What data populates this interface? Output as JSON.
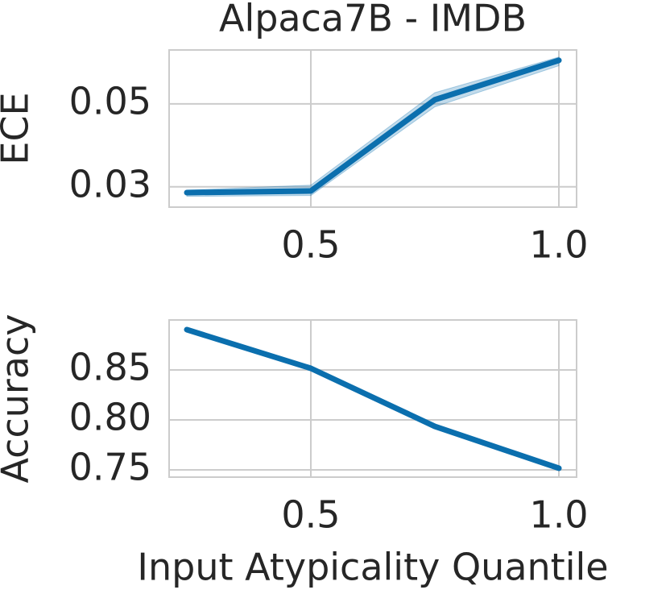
{
  "chart_data": [
    {
      "type": "line",
      "title": "Alpaca7B - IMDB",
      "y_label": "ECE",
      "x": [
        0.25,
        0.5,
        0.75,
        1.0
      ],
      "series": [
        {
          "color": "#0b6fae",
          "values": [
            0.0286,
            0.029,
            0.051,
            0.0605
          ]
        }
      ],
      "band_lower": [
        0.0277,
        0.0279,
        0.0493,
        0.0592
      ],
      "band_upper": [
        0.0292,
        0.0304,
        0.0527,
        0.0613
      ],
      "xlim": [
        0.2143,
        1.0357
      ],
      "ylim": [
        0.0251,
        0.063
      ],
      "xticks": [
        0.5,
        {
          "value": 1,
          "label": "1.0"
        }
      ],
      "yticks": [
        0.03,
        0.05
      ],
      "grid": true
    },
    {
      "type": "line",
      "y_label": "Accuracy",
      "x_label": "Input Atypicality Quantile",
      "x": [
        0.25,
        0.5,
        0.75,
        1.0
      ],
      "series": [
        {
          "color": "#0b6fae",
          "values": [
            0.8903,
            0.8516,
            0.7935,
            0.7516
          ]
        }
      ],
      "xlim": [
        0.2143,
        1.0357
      ],
      "ylim": [
        0.7427,
        0.9
      ],
      "xticks": [
        0.5,
        {
          "value": 1,
          "label": "1.0"
        }
      ],
      "yticks": [
        0.75,
        {
          "value": 0.8,
          "label": "0.80"
        },
        0.85
      ],
      "grid": true
    }
  ]
}
